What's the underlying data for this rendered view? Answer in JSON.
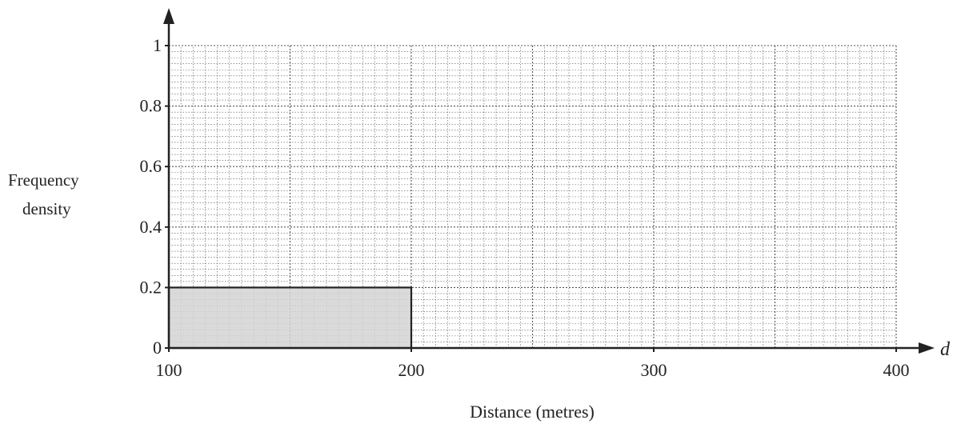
{
  "chart_data": {
    "type": "bar",
    "title": "",
    "xlabel": "Distance (metres)",
    "ylabel_lines": [
      "Frequency",
      "density"
    ],
    "x_axis_variable": "d",
    "xlim": [
      100,
      400
    ],
    "ylim": [
      0,
      1
    ],
    "x_ticks": [
      100,
      200,
      300,
      400
    ],
    "x_tick_labels": [
      "100",
      "200",
      "300",
      "400"
    ],
    "y_ticks": [
      0,
      0.2,
      0.4,
      0.6,
      0.8,
      1
    ],
    "y_tick_labels": [
      "0",
      "0.2",
      "0.4",
      "0.6",
      "0.8",
      "1"
    ],
    "grid": true,
    "bars": [
      {
        "x_start": 100,
        "x_end": 200,
        "value": 0.2
      }
    ],
    "colors": {
      "bar_fill": "#d4d4d4",
      "axis": "#222222",
      "grid": "#555555"
    }
  }
}
